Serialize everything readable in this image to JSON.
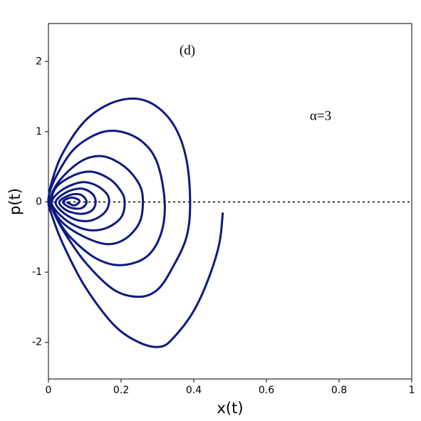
{
  "chart_data": {
    "type": "line",
    "annotations": [
      "(d)",
      "α=3"
    ],
    "xlabel": "x(t)",
    "ylabel": "p(t)",
    "xlim": [
      0,
      1
    ],
    "ylim": [
      -2.52,
      2.54
    ],
    "xticks": [
      0,
      0.2,
      0.4,
      0.6,
      0.8,
      1
    ],
    "yticks": [
      -2,
      -1,
      0,
      1,
      2
    ],
    "reference_line": 0,
    "series": [
      {
        "color": "#0d1a80",
        "x": [
          0.48,
          0.47,
          0.44,
          0.4,
          0.35,
          0.31,
          0.25,
          0.18,
          0.1,
          0.04,
          0.01,
          0.0,
          0.01,
          0.04,
          0.1,
          0.17,
          0.24,
          0.3,
          0.35,
          0.38,
          0.39,
          0.38,
          0.34,
          0.3,
          0.25,
          0.18,
          0.1,
          0.04,
          0.01,
          0.0,
          0.02,
          0.07,
          0.14,
          0.2,
          0.26,
          0.3,
          0.32,
          0.31,
          0.27,
          0.2,
          0.13,
          0.06,
          0.02,
          0.005,
          0.03,
          0.09,
          0.15,
          0.21,
          0.25,
          0.26,
          0.25,
          0.21,
          0.16,
          0.1,
          0.04,
          0.01,
          0.02,
          0.07,
          0.12,
          0.17,
          0.2,
          0.21,
          0.2,
          0.16,
          0.11,
          0.06,
          0.02,
          0.01,
          0.04,
          0.09,
          0.13,
          0.16,
          0.167,
          0.155,
          0.12,
          0.08,
          0.04,
          0.02,
          0.05,
          0.09,
          0.12,
          0.13,
          0.12,
          0.09,
          0.05,
          0.03,
          0.06,
          0.09,
          0.105,
          0.09,
          0.06,
          0.04,
          0.06,
          0.08,
          0.085,
          0.07,
          0.05
        ],
        "values": [
          -0.15,
          -0.6,
          -1.1,
          -1.55,
          -1.9,
          -2.06,
          -2.0,
          -1.75,
          -1.2,
          -0.6,
          -0.2,
          0.0,
          0.3,
          0.7,
          1.15,
          1.4,
          1.47,
          1.35,
          1.05,
          0.6,
          0.0,
          -0.5,
          -0.95,
          -1.25,
          -1.35,
          -1.25,
          -0.85,
          -0.4,
          -0.1,
          0.05,
          0.35,
          0.75,
          0.98,
          1.0,
          0.85,
          0.55,
          0.0,
          -0.45,
          -0.78,
          -0.9,
          -0.8,
          -0.5,
          -0.2,
          0.02,
          0.3,
          0.58,
          0.65,
          0.5,
          0.25,
          0.0,
          -0.3,
          -0.53,
          -0.6,
          -0.5,
          -0.3,
          -0.05,
          0.2,
          0.38,
          0.43,
          0.32,
          0.15,
          0.0,
          -0.22,
          -0.37,
          -0.4,
          -0.3,
          -0.12,
          0.02,
          0.18,
          0.28,
          0.24,
          0.12,
          0.0,
          -0.15,
          -0.26,
          -0.26,
          -0.15,
          0.0,
          0.14,
          0.19,
          0.12,
          0.0,
          -0.12,
          -0.17,
          -0.12,
          0.0,
          0.1,
          0.1,
          0.0,
          -0.09,
          -0.08,
          0.0,
          0.06,
          0.04,
          0.0,
          -0.05,
          0.0
        ]
      }
    ]
  }
}
